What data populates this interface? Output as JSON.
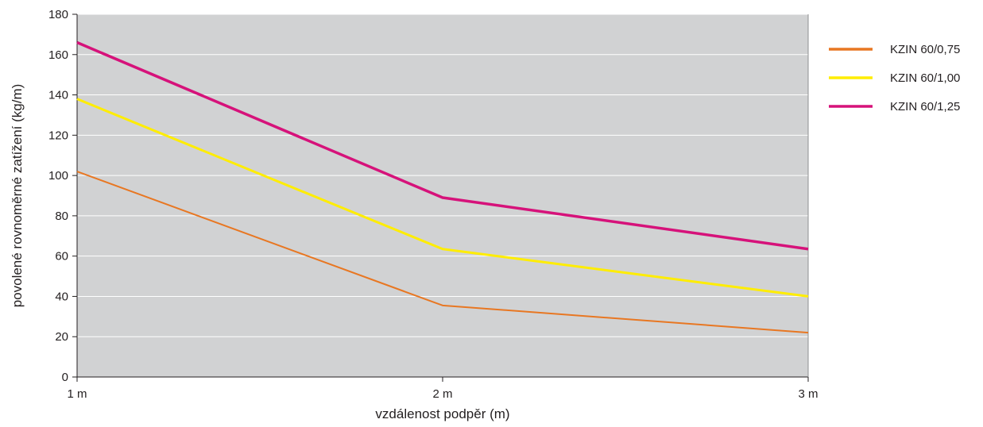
{
  "chart_data": {
    "type": "line",
    "categories": [
      "1 m",
      "2 m",
      "3 m"
    ],
    "series": [
      {
        "name": "KZIN 60/0,75",
        "values": [
          102,
          35.5,
          22
        ],
        "color": "#e87722"
      },
      {
        "name": "KZIN 60/1,00",
        "values": [
          138,
          63.5,
          40
        ],
        "color": "#ffed00"
      },
      {
        "name": "KZIN 60/1,25",
        "values": [
          166,
          89,
          63.5
        ],
        "color": "#d6127a"
      }
    ],
    "xlabel": "vzdálenost podpěr (m)",
    "ylabel": "povolené rovnoměrné zatížení (kg/m)",
    "ylim": [
      0,
      180
    ],
    "yticks": [
      "0",
      "20",
      "40",
      "60",
      "80",
      "100",
      "120",
      "140",
      "160",
      "180"
    ],
    "grid": true,
    "legend": "right",
    "plot_background": "#d1d2d3",
    "gridline_color": "#ffffff"
  }
}
